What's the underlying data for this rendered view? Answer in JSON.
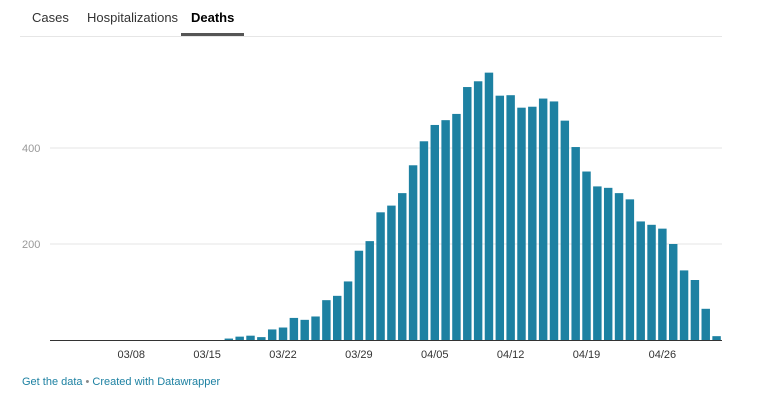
{
  "tabs": [
    {
      "label": "Cases",
      "active": false
    },
    {
      "label": "Hospitalizations",
      "active": false
    },
    {
      "label": "Deaths",
      "active": true
    }
  ],
  "footer": {
    "get_data": "Get the data",
    "separator": "•",
    "created_with": "Created with Datawrapper"
  },
  "colors": {
    "bar": "#1d81a2",
    "gridline": "#e6e6e6",
    "axis": "#333333",
    "tick_text": "#999999"
  },
  "chart_data": {
    "type": "bar",
    "title": "",
    "xlabel": "",
    "ylabel": "",
    "ylim": [
      0,
      580
    ],
    "yticks": [
      200,
      400
    ],
    "grid": true,
    "x_tick_labels": [
      {
        "label": "03/08",
        "day": 8
      },
      {
        "label": "03/15",
        "day": 15
      },
      {
        "label": "03/22",
        "day": 22
      },
      {
        "label": "03/29",
        "day": 29
      },
      {
        "label": "04/05",
        "day": 36
      },
      {
        "label": "04/12",
        "day": 43
      },
      {
        "label": "04/19",
        "day": 50
      },
      {
        "label": "04/26",
        "day": 57
      }
    ],
    "series": [
      {
        "values": [
          0,
          0,
          0,
          0,
          0,
          0,
          0,
          0,
          0,
          0,
          0,
          0,
          0,
          0,
          0,
          0,
          3,
          7,
          9,
          6,
          22,
          26,
          46,
          42,
          49,
          83,
          92,
          122,
          186,
          206,
          266,
          280,
          306,
          364,
          414,
          448,
          458,
          471,
          527,
          539,
          557,
          509,
          510,
          484,
          486,
          503,
          497,
          457,
          402,
          351,
          320,
          317,
          306,
          293,
          247,
          240,
          232,
          200,
          145,
          125,
          65,
          8
        ]
      }
    ]
  }
}
